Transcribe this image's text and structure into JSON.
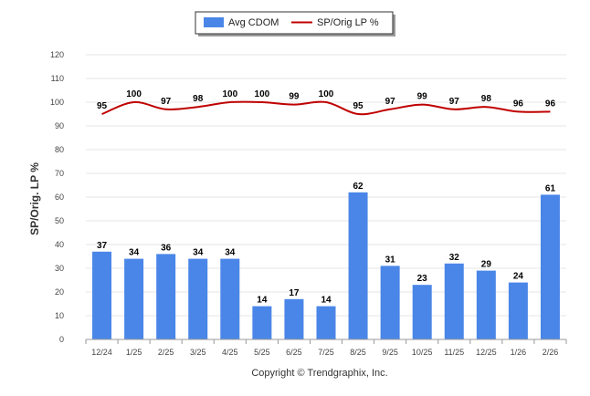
{
  "chart_data": {
    "type": "bar",
    "categories": [
      "12/24",
      "1/25",
      "2/25",
      "3/25",
      "4/25",
      "5/25",
      "6/25",
      "7/25",
      "8/25",
      "9/25",
      "10/25",
      "11/25",
      "12/25",
      "1/26",
      "2/26"
    ],
    "series": [
      {
        "name": "Avg CDOM",
        "kind": "bar",
        "color": "#4a86e8",
        "values": [
          37,
          34,
          36,
          34,
          34,
          14,
          17,
          14,
          62,
          31,
          23,
          32,
          29,
          24,
          61
        ]
      },
      {
        "name": "SP/Orig LP %",
        "kind": "line",
        "color": "#c00000",
        "values": [
          95,
          100,
          97,
          98,
          100,
          100,
          99,
          100,
          95,
          97,
          99,
          97,
          98,
          96,
          96
        ]
      }
    ],
    "ylabel": "SP/Orig. LP %",
    "ylim": [
      0,
      120
    ],
    "yticks": [
      0,
      10,
      20,
      30,
      40,
      50,
      60,
      70,
      80,
      90,
      100,
      110,
      120
    ],
    "grid": true,
    "legend_position": "top-center"
  },
  "footer": {
    "text": "Copyright © Trendgraphix, Inc."
  }
}
